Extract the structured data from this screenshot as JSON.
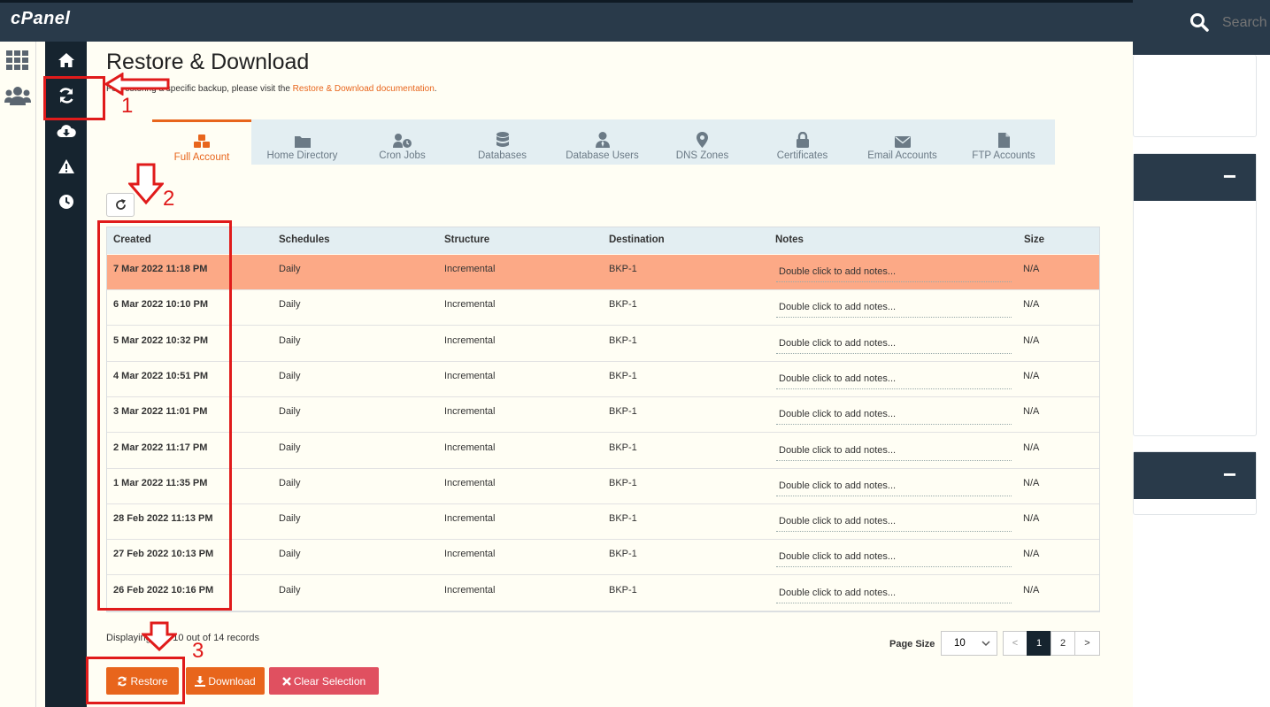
{
  "app": {
    "logo": "cPanel"
  },
  "search": {
    "placeholder": "Search"
  },
  "page": {
    "title": "Restore & Download",
    "intro_prefix": "For restoring a specific backup, please visit the ",
    "intro_link": "Restore & Download documentation",
    "intro_suffix": "."
  },
  "tabs": [
    {
      "label": "Full Account",
      "icon": "cubes-icon"
    },
    {
      "label": "Home Directory",
      "icon": "folder-icon"
    },
    {
      "label": "Cron Jobs",
      "icon": "user-clock-icon"
    },
    {
      "label": "Databases",
      "icon": "database-icon"
    },
    {
      "label": "Database Users",
      "icon": "user-tie-icon"
    },
    {
      "label": "DNS Zones",
      "icon": "map-marker-icon"
    },
    {
      "label": "Certificates",
      "icon": "lock-icon"
    },
    {
      "label": "Email Accounts",
      "icon": "envelope-icon"
    },
    {
      "label": "FTP Accounts",
      "icon": "file-icon"
    }
  ],
  "table": {
    "columns": [
      "Created",
      "Schedules",
      "Structure",
      "Destination",
      "Notes",
      "Size"
    ],
    "notes_placeholder": "Double click to add notes...",
    "rows": [
      {
        "created": "7 Mar 2022 11:18 PM",
        "schedule": "Daily",
        "structure": "Incremental",
        "destination": "BKP-1",
        "size": "N/A"
      },
      {
        "created": "6 Mar 2022 10:10 PM",
        "schedule": "Daily",
        "structure": "Incremental",
        "destination": "BKP-1",
        "size": "N/A"
      },
      {
        "created": "5 Mar 2022 10:32 PM",
        "schedule": "Daily",
        "structure": "Incremental",
        "destination": "BKP-1",
        "size": "N/A"
      },
      {
        "created": "4 Mar 2022 10:51 PM",
        "schedule": "Daily",
        "structure": "Incremental",
        "destination": "BKP-1",
        "size": "N/A"
      },
      {
        "created": "3 Mar 2022 11:01 PM",
        "schedule": "Daily",
        "structure": "Incremental",
        "destination": "BKP-1",
        "size": "N/A"
      },
      {
        "created": "2 Mar 2022 11:17 PM",
        "schedule": "Daily",
        "structure": "Incremental",
        "destination": "BKP-1",
        "size": "N/A"
      },
      {
        "created": "1 Mar 2022 11:35 PM",
        "schedule": "Daily",
        "structure": "Incremental",
        "destination": "BKP-1",
        "size": "N/A"
      },
      {
        "created": "28 Feb 2022 11:13 PM",
        "schedule": "Daily",
        "structure": "Incremental",
        "destination": "BKP-1",
        "size": "N/A"
      },
      {
        "created": "27 Feb 2022 10:13 PM",
        "schedule": "Daily",
        "structure": "Incremental",
        "destination": "BKP-1",
        "size": "N/A"
      },
      {
        "created": "26 Feb 2022 10:16 PM",
        "schedule": "Daily",
        "structure": "Incremental",
        "destination": "BKP-1",
        "size": "N/A"
      }
    ]
  },
  "footer": {
    "displaying": "Displaying 1 to 10 out of 14 records",
    "page_size_label": "Page Size",
    "page_size_value": "10",
    "pages": [
      "<",
      "1",
      "2",
      ">"
    ],
    "current_page": "1"
  },
  "actions": {
    "restore": "Restore",
    "download": "Download",
    "clear": "Clear Selection"
  },
  "annotations": [
    "1",
    "2",
    "3"
  ],
  "colors": {
    "accent": "#e8651c",
    "dark": "#16242f",
    "selected_row": "#fca986",
    "annotation": "#e01b1b"
  }
}
